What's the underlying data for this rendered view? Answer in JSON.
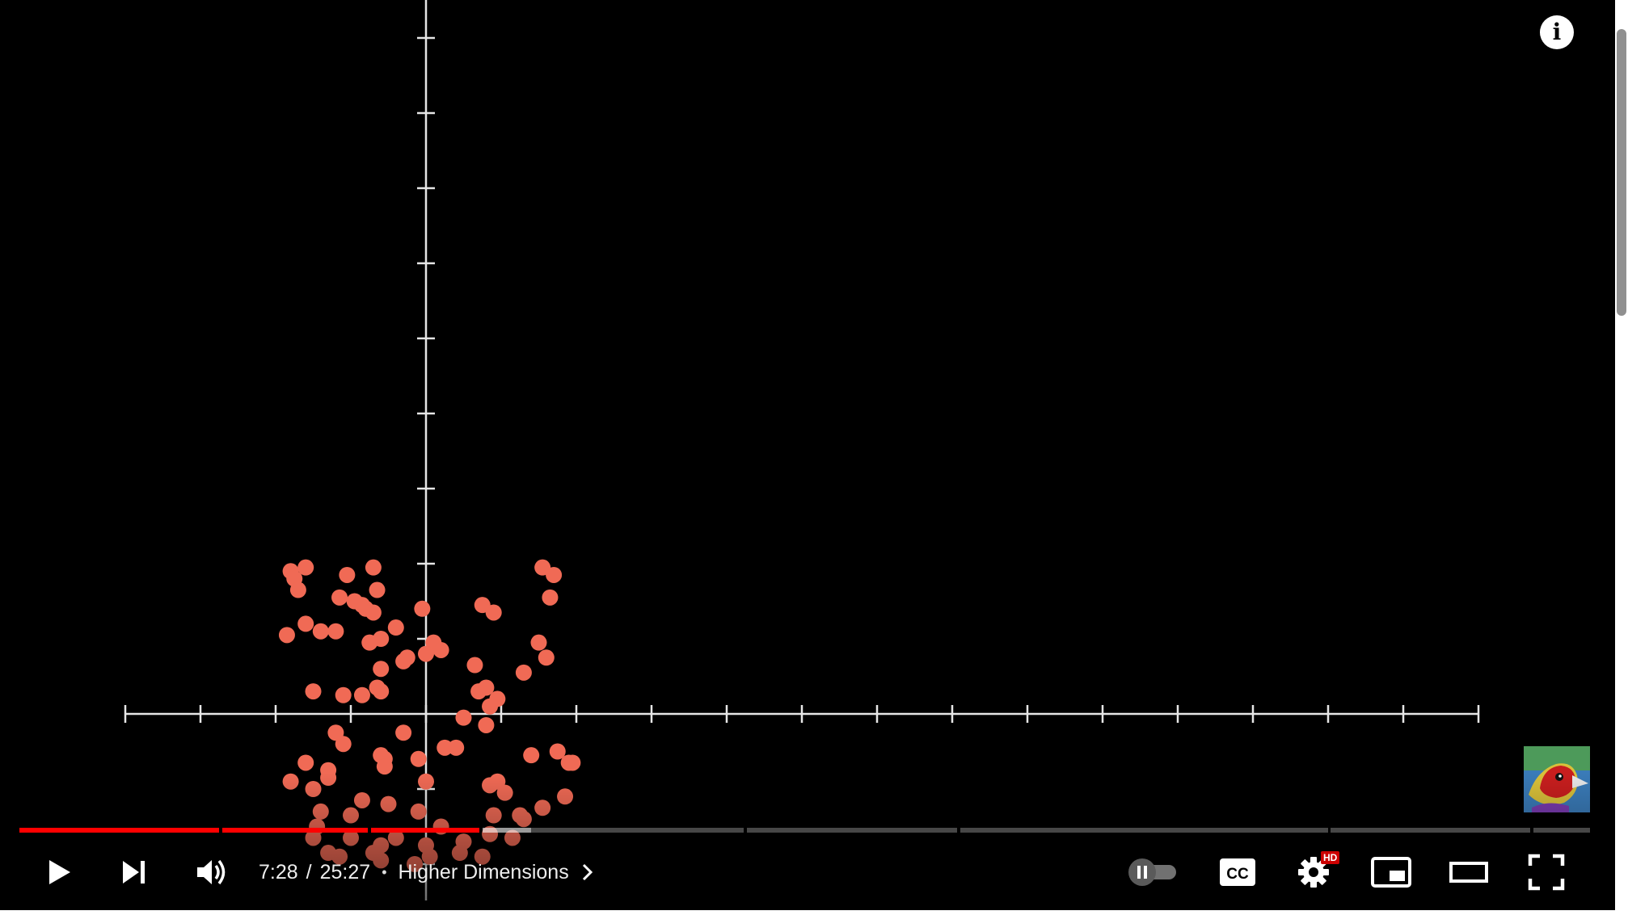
{
  "player": {
    "time": {
      "current": "7:28",
      "separator": "/",
      "duration": "25:27"
    },
    "chapter": {
      "bullet": "•",
      "title": "Higher Dimensions"
    },
    "progress": {
      "played_fraction": 0.294,
      "buffered_fraction": 0.326
    },
    "badges": {
      "hd": "HD"
    },
    "icons": {
      "info": "info-icon",
      "play": "play-icon",
      "next": "next-icon",
      "volume": "volume-icon",
      "autoplay": "autoplay-toggle-icon",
      "captions": "cc-icon",
      "settings": "gear-icon",
      "miniplayer": "miniplayer-icon",
      "theater": "theater-mode-icon",
      "fullscreen": "fullscreen-icon"
    },
    "captions_label": "CC"
  },
  "video_frame": {
    "point_color": "#f06a55",
    "axis_color": "#e6e6e6"
  },
  "chart_data": {
    "type": "scatter",
    "xlim": [
      -4,
      14
    ],
    "ylim": [
      -2.5,
      9.5
    ],
    "grid": false,
    "series": [
      {
        "x": [
          -1.8,
          -1.6,
          -1.75,
          -1.7,
          -1.05,
          -0.7,
          -0.65,
          -1.15,
          -0.95,
          -0.85,
          -0.8,
          -0.7,
          -1.6,
          -1.85,
          -0.75,
          -1.4,
          -1.2,
          -0.6,
          -0.4,
          -0.05,
          0.1,
          -0.25,
          -0.6,
          -0.3,
          -0.6,
          -0.85,
          -1.1,
          -1.5,
          -0.65,
          0.0,
          0.2,
          0.65,
          0.75,
          0.9,
          1.55,
          1.7,
          1.65,
          1.5,
          1.6,
          1.3,
          0.7,
          0.8,
          0.95,
          0.85,
          0.25,
          0.5,
          0.8,
          -1.2,
          -1.1,
          -0.55,
          -0.6,
          -0.3,
          -0.1,
          0.4,
          1.4,
          1.75,
          1.9,
          1.95,
          0.85,
          0.95,
          0.0,
          -0.85,
          -1.5,
          -1.3,
          -1.3,
          -0.55,
          -0.1,
          -0.5,
          -1.0,
          -1.4,
          -1.8,
          -1.6,
          -1.45,
          -1.0,
          -0.6,
          -0.4,
          0.2,
          0.5,
          0.85,
          1.15,
          1.25,
          1.3,
          1.55,
          1.85,
          0.9,
          1.05,
          -0.6,
          -0.7,
          0.0,
          0.05,
          -0.15,
          -1.5,
          -1.3,
          -1.15,
          0.45,
          0.75
        ],
        "y": [
          1.9,
          1.95,
          1.8,
          1.65,
          1.85,
          1.95,
          1.65,
          1.55,
          1.5,
          1.45,
          1.4,
          1.35,
          1.2,
          1.05,
          0.95,
          1.1,
          1.1,
          1.0,
          1.15,
          1.4,
          0.95,
          0.75,
          0.6,
          0.7,
          0.3,
          0.25,
          0.25,
          0.3,
          0.35,
          0.8,
          0.85,
          0.65,
          1.45,
          1.35,
          1.95,
          1.85,
          1.55,
          0.95,
          0.75,
          0.55,
          0.3,
          0.35,
          0.2,
          0.1,
          -0.45,
          -0.05,
          -0.15,
          -0.25,
          -0.4,
          -0.6,
          -0.55,
          -0.25,
          -0.6,
          -0.45,
          -0.55,
          -0.5,
          -0.65,
          -0.65,
          -0.95,
          -0.9,
          -0.9,
          -1.15,
          -1.0,
          -0.75,
          -0.85,
          -0.7,
          -1.3,
          -1.2,
          -1.35,
          -1.3,
          -0.9,
          -0.65,
          -1.5,
          -1.65,
          -1.75,
          -1.65,
          -1.5,
          -1.7,
          -1.6,
          -1.65,
          -1.35,
          -1.4,
          -1.25,
          -1.1,
          -1.35,
          -1.05,
          -1.95,
          -1.85,
          -1.75,
          -1.9,
          -2.0,
          -1.65,
          -1.85,
          -1.9,
          -1.85,
          -1.9
        ]
      }
    ]
  }
}
